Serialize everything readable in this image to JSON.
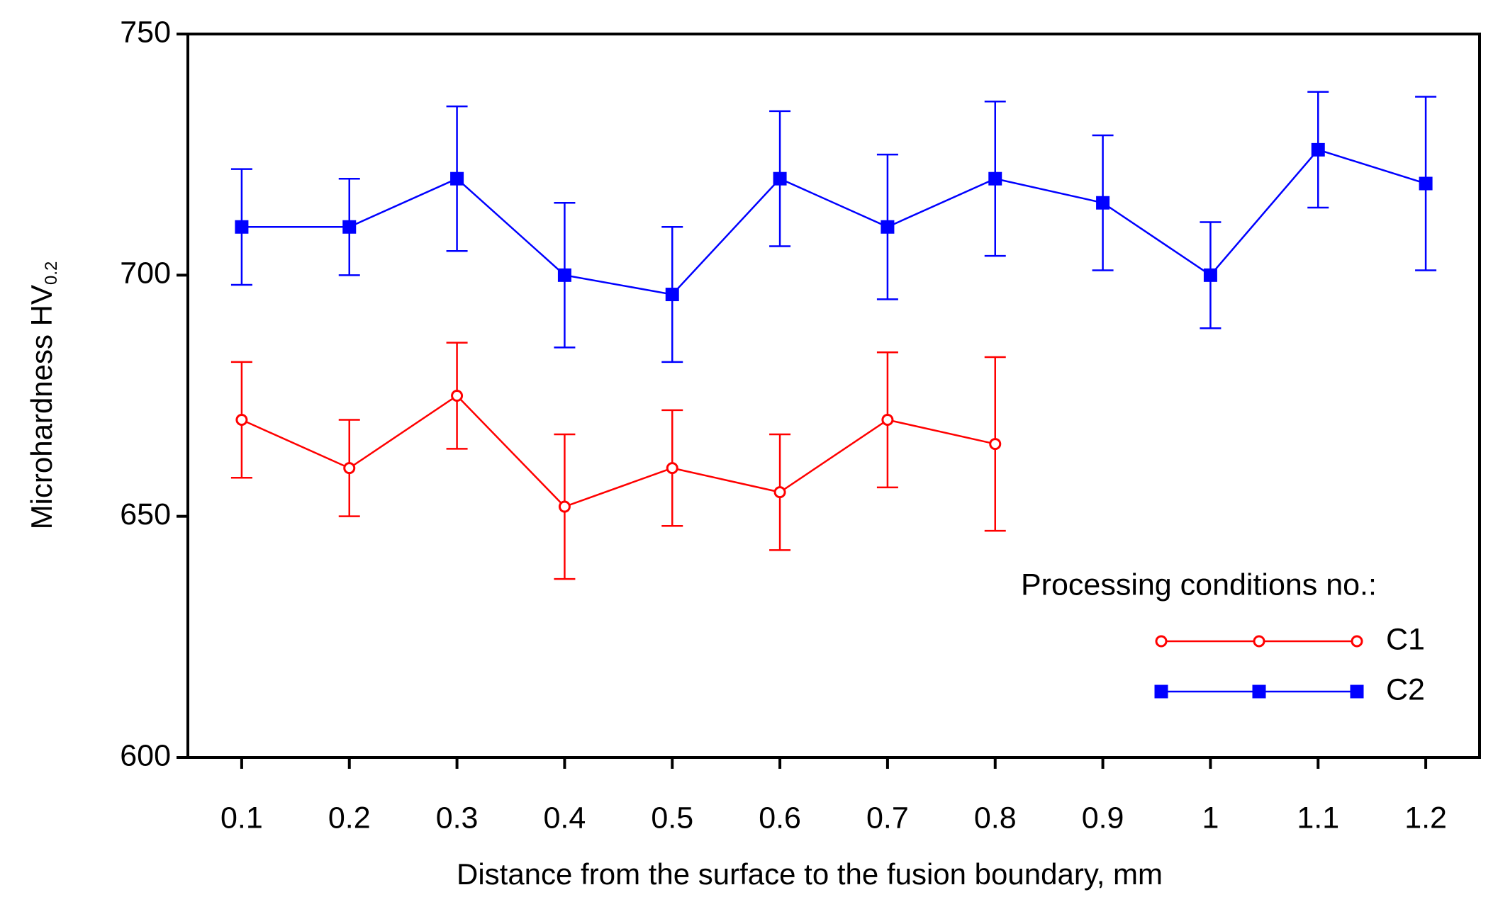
{
  "chart_data": {
    "type": "line",
    "xlabel": "Distance from the surface to the fusion boundary, mm",
    "ylabel": "Microhardness HV",
    "ylabel_sub": "0.2",
    "legend_title": "Processing conditions no.:",
    "legend": "lower right",
    "x": [
      0.1,
      0.2,
      0.3,
      0.4,
      0.5,
      0.6,
      0.7,
      0.8,
      0.9,
      1,
      1.1,
      1.2
    ],
    "series": [
      {
        "name": "C1",
        "color": "#ff0000",
        "marker": "circle",
        "values": [
          670,
          660,
          675,
          652,
          660,
          655,
          670,
          665,
          null,
          null,
          null,
          null
        ],
        "errors": [
          12,
          10,
          11,
          15,
          12,
          12,
          14,
          18,
          null,
          null,
          null,
          null
        ]
      },
      {
        "name": "C2",
        "color": "#0000ff",
        "marker": "square",
        "values": [
          710,
          710,
          720,
          700,
          696,
          720,
          710,
          720,
          715,
          700,
          726,
          719
        ],
        "errors": [
          12,
          10,
          15,
          15,
          14,
          14,
          15,
          16,
          14,
          11,
          12,
          18
        ]
      }
    ],
    "xlim": [
      0.05,
      1.25
    ],
    "xticks": [
      0.1,
      0.2,
      0.3,
      0.4,
      0.5,
      0.6,
      0.7,
      0.8,
      0.9,
      1,
      1.1,
      1.2
    ],
    "ylim": [
      600,
      750
    ],
    "yticks": [
      600,
      650,
      700,
      750
    ],
    "grid": false
  }
}
